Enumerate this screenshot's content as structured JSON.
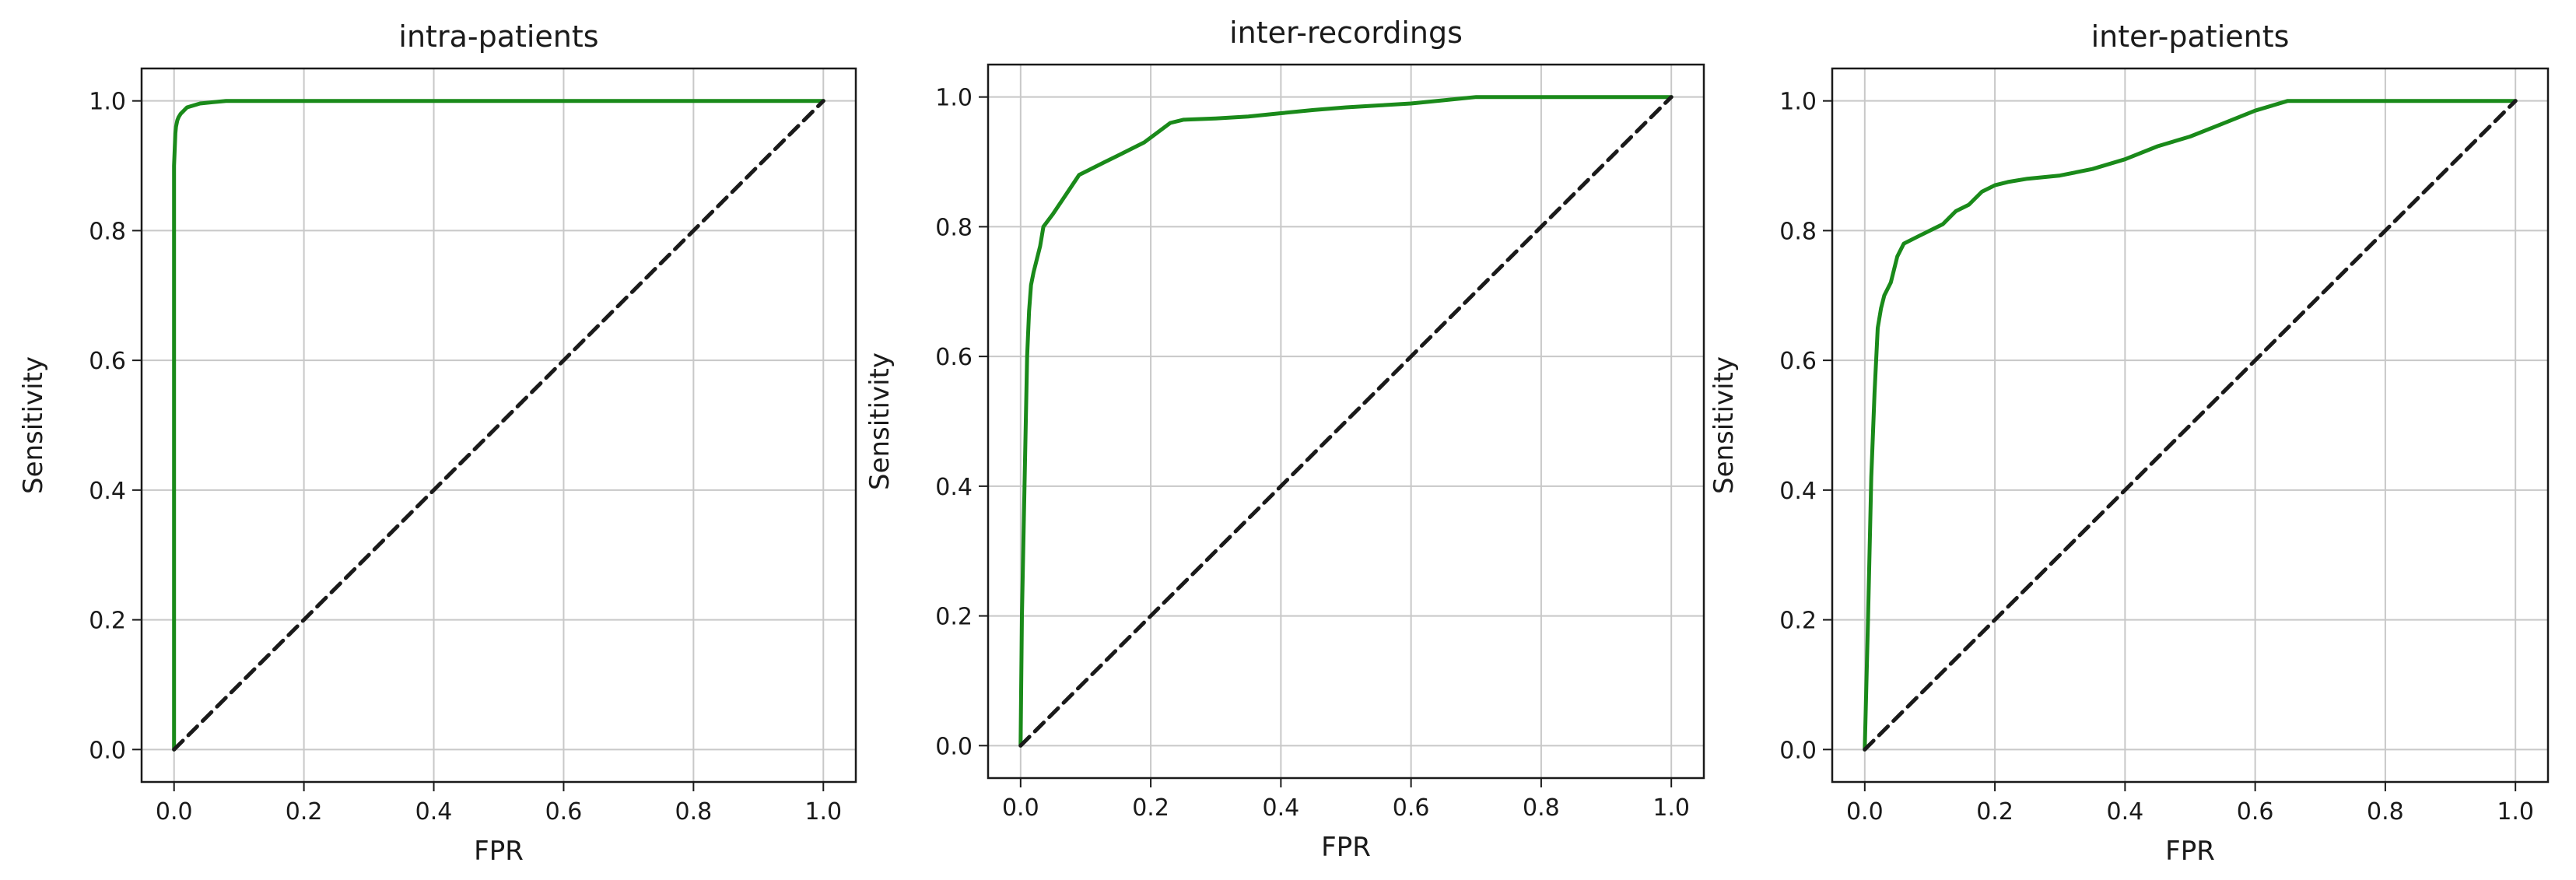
{
  "chart_data": [
    {
      "type": "line",
      "title": "intra-patients",
      "xlabel": "FPR",
      "ylabel": "Sensitivity",
      "xlim": [
        -0.05,
        1.05
      ],
      "ylim": [
        -0.05,
        1.05
      ],
      "xticks": [
        "0.0",
        "0.2",
        "0.4",
        "0.6",
        "0.8",
        "1.0"
      ],
      "yticks": [
        "0.0",
        "0.2",
        "0.4",
        "0.6",
        "0.8",
        "1.0"
      ],
      "grid": true,
      "series": [
        {
          "color": "#1a8a1a",
          "style": "solid",
          "x": [
            0.0,
            0.0,
            0.002,
            0.003,
            0.005,
            0.007,
            0.01,
            0.015,
            0.02,
            0.03,
            0.04,
            0.06,
            0.08,
            0.1,
            0.2,
            0.4,
            0.6,
            0.8,
            1.0
          ],
          "y": [
            0.0,
            0.9,
            0.95,
            0.96,
            0.97,
            0.975,
            0.98,
            0.985,
            0.99,
            0.993,
            0.996,
            0.998,
            1.0,
            1.0,
            1.0,
            1.0,
            1.0,
            1.0,
            1.0
          ]
        },
        {
          "color": "#1a1a1a",
          "style": "dashed",
          "x": [
            0.0,
            1.0
          ],
          "y": [
            0.0,
            1.0
          ]
        }
      ]
    },
    {
      "type": "line",
      "title": "inter-recordings",
      "xlabel": "FPR",
      "ylabel": "Sensitivity",
      "xlim": [
        -0.05,
        1.05
      ],
      "ylim": [
        -0.05,
        1.05
      ],
      "xticks": [
        "0.0",
        "0.2",
        "0.4",
        "0.6",
        "0.8",
        "1.0"
      ],
      "yticks": [
        "0.0",
        "0.2",
        "0.4",
        "0.6",
        "0.8",
        "1.0"
      ],
      "grid": true,
      "series": [
        {
          "color": "#1a8a1a",
          "style": "solid",
          "x": [
            0.0,
            0.002,
            0.005,
            0.008,
            0.01,
            0.013,
            0.016,
            0.02,
            0.025,
            0.03,
            0.035,
            0.05,
            0.07,
            0.09,
            0.11,
            0.13,
            0.15,
            0.17,
            0.19,
            0.21,
            0.23,
            0.25,
            0.3,
            0.35,
            0.4,
            0.45,
            0.5,
            0.55,
            0.6,
            0.65,
            0.7,
            0.8,
            0.9,
            1.0
          ],
          "y": [
            0.0,
            0.2,
            0.35,
            0.5,
            0.6,
            0.67,
            0.71,
            0.73,
            0.75,
            0.77,
            0.8,
            0.82,
            0.85,
            0.88,
            0.89,
            0.9,
            0.91,
            0.92,
            0.93,
            0.945,
            0.96,
            0.965,
            0.967,
            0.97,
            0.975,
            0.98,
            0.984,
            0.987,
            0.99,
            0.995,
            1.0,
            1.0,
            1.0,
            1.0
          ]
        },
        {
          "color": "#1a1a1a",
          "style": "dashed",
          "x": [
            0.0,
            1.0
          ],
          "y": [
            0.0,
            1.0
          ]
        }
      ]
    },
    {
      "type": "line",
      "title": "inter-patients",
      "xlabel": "FPR",
      "ylabel": "Sensitivity",
      "xlim": [
        -0.05,
        1.05
      ],
      "ylim": [
        -0.05,
        1.05
      ],
      "xticks": [
        "0.0",
        "0.2",
        "0.4",
        "0.6",
        "0.8",
        "1.0"
      ],
      "yticks": [
        "0.0",
        "0.2",
        "0.4",
        "0.6",
        "0.8",
        "1.0"
      ],
      "grid": true,
      "series": [
        {
          "color": "#1a8a1a",
          "style": "solid",
          "x": [
            0.0,
            0.005,
            0.01,
            0.015,
            0.02,
            0.025,
            0.03,
            0.04,
            0.05,
            0.06,
            0.08,
            0.1,
            0.12,
            0.14,
            0.16,
            0.18,
            0.2,
            0.22,
            0.25,
            0.3,
            0.35,
            0.4,
            0.45,
            0.5,
            0.55,
            0.6,
            0.65,
            0.7,
            0.8,
            0.9,
            1.0
          ],
          "y": [
            0.0,
            0.2,
            0.42,
            0.55,
            0.65,
            0.68,
            0.7,
            0.72,
            0.76,
            0.78,
            0.79,
            0.8,
            0.81,
            0.83,
            0.84,
            0.86,
            0.87,
            0.875,
            0.88,
            0.885,
            0.895,
            0.91,
            0.93,
            0.945,
            0.965,
            0.985,
            1.0,
            1.0,
            1.0,
            1.0,
            1.0
          ]
        },
        {
          "color": "#1a1a1a",
          "style": "dashed",
          "x": [
            0.0,
            1.0
          ],
          "y": [
            0.0,
            1.0
          ]
        }
      ]
    }
  ]
}
